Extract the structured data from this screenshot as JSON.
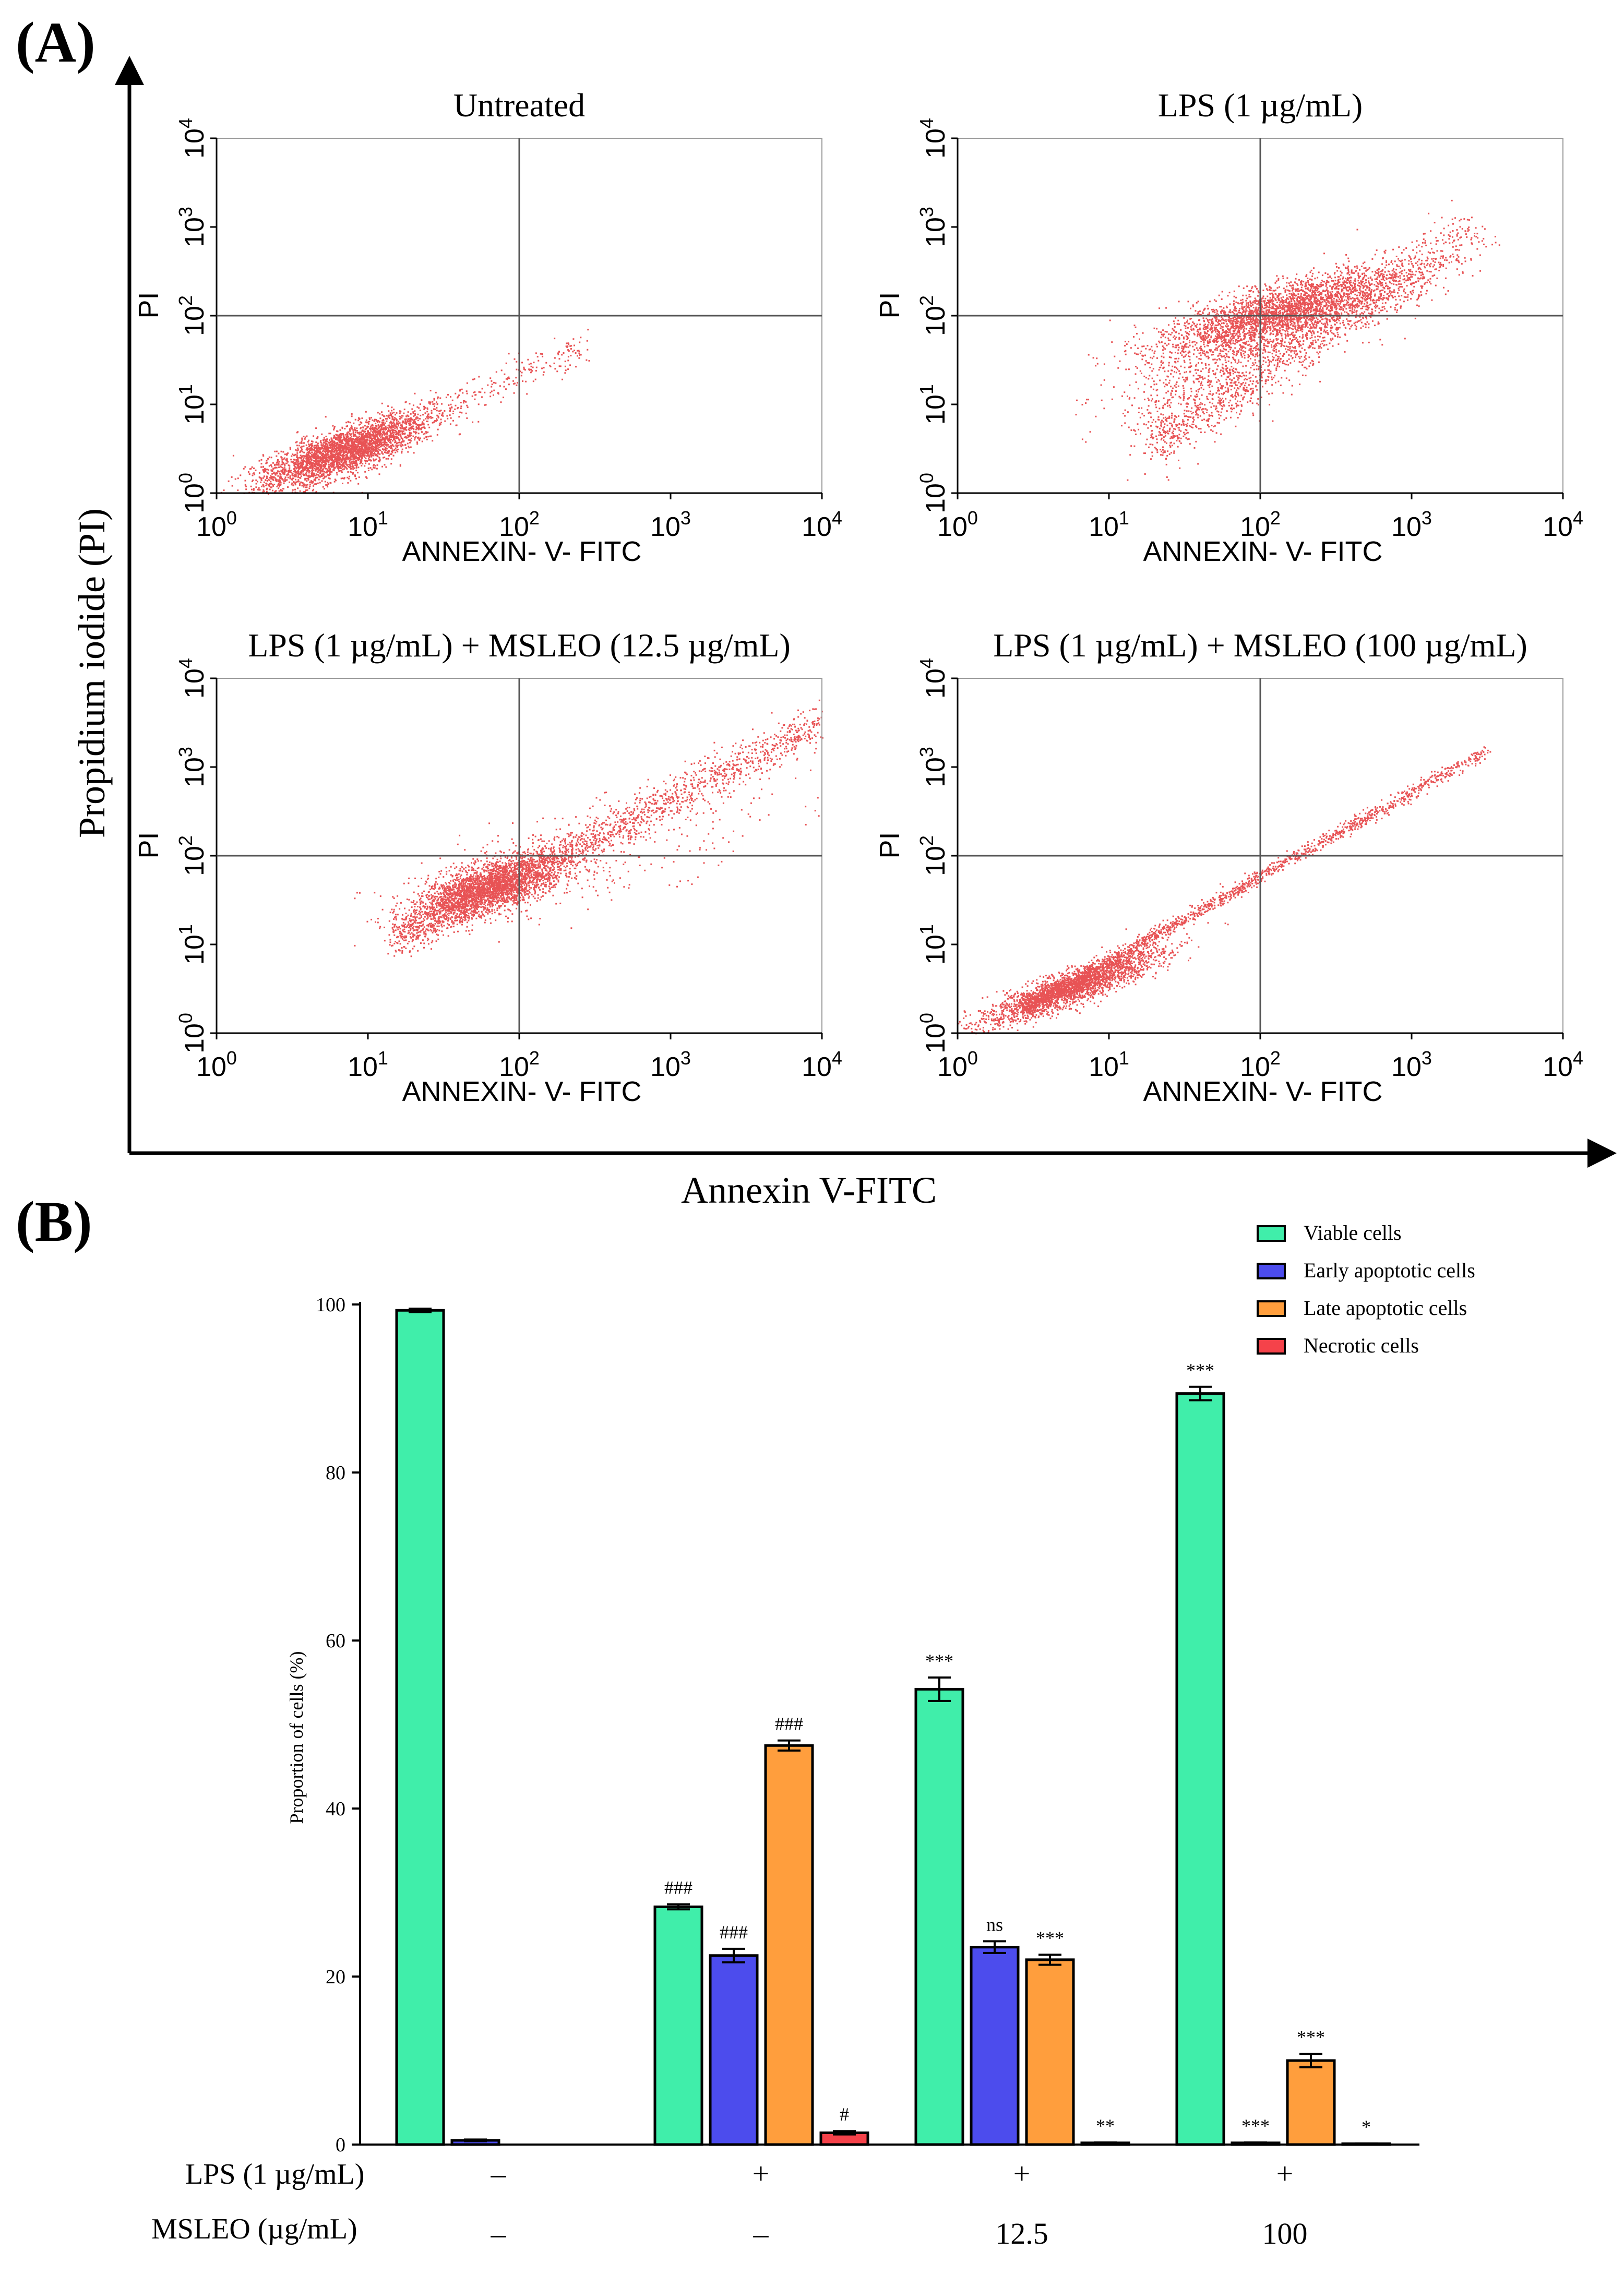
{
  "panel_labels": {
    "a": "(A)",
    "b": "(B)"
  },
  "panel_a": {
    "y_axis_title": "Propidium iodide (PI)",
    "x_axis_title": "Annexin V-FITC",
    "colors": {
      "dots": "#e0191c",
      "axis": "#000000",
      "quadrant_line": "#555555"
    },
    "chart_data": [
      {
        "type": "scatter",
        "title": "Untreated",
        "xlabel": "ANNEXIN- V- FITC",
        "ylabel": "PI",
        "xscale": "log",
        "yscale": "log",
        "xlim": [
          1,
          10000
        ],
        "ylim": [
          1,
          10000
        ],
        "tick_labels": [
          "10",
          "10",
          "10",
          "10",
          "10"
        ],
        "tick_exponents": [
          "0",
          "1",
          "2",
          "3",
          "4"
        ],
        "quadrant_gate": [
          100,
          100
        ],
        "population": "tight cluster centred near (7, 3) extending diagonally to about (300, 40)"
      },
      {
        "type": "scatter",
        "title": "LPS (1 µg/mL)",
        "xlabel": "ANNEXIN- V- FITC",
        "ylabel": "PI",
        "xscale": "log",
        "yscale": "log",
        "xlim": [
          1,
          10000
        ],
        "ylim": [
          1,
          10000
        ],
        "tick_labels": [
          "10",
          "10",
          "10",
          "10",
          "10"
        ],
        "tick_exponents": [
          "0",
          "1",
          "2",
          "3",
          "4"
        ],
        "quadrant_gate": [
          100,
          100
        ],
        "population": "dense band centred near (200, 120) from about (10, 3) to (3000, 1000)"
      },
      {
        "type": "scatter",
        "title": "LPS (1 µg/mL) + MSLEO (12.5 µg/mL)",
        "xlabel": "ANNEXIN- V- FITC",
        "ylabel": "PI",
        "xscale": "log",
        "yscale": "log",
        "xlim": [
          1,
          10000
        ],
        "ylim": [
          1,
          10000
        ],
        "tick_labels": [
          "10",
          "10",
          "10",
          "10",
          "10"
        ],
        "tick_exponents": [
          "0",
          "1",
          "2",
          "3",
          "4"
        ],
        "quadrant_gate": [
          100,
          100
        ],
        "population": "cluster centred near (70, 50) with tail rising to (10000, 3000)"
      },
      {
        "type": "scatter",
        "title": "LPS (1 µg/mL) + MSLEO (100 µg/mL)",
        "xlabel": "ANNEXIN- V- FITC",
        "ylabel": "PI",
        "xscale": "log",
        "yscale": "log",
        "xlim": [
          1,
          10000
        ],
        "ylim": [
          1,
          10000
        ],
        "tick_labels": [
          "10",
          "10",
          "10",
          "10",
          "10"
        ],
        "tick_exponents": [
          "0",
          "1",
          "2",
          "3",
          "4"
        ],
        "quadrant_gate": [
          100,
          100
        ],
        "population": "narrow diagonal streak, dense near (5, 3), thinning to (3000, 1600)"
      }
    ]
  },
  "panel_b": {
    "chart_data": {
      "type": "bar",
      "title": "",
      "ylabel": "Proportion of cells (%)",
      "ylim": [
        0,
        100
      ],
      "yticks": [
        "0",
        "20",
        "40",
        "60",
        "80",
        "100"
      ],
      "legend_position": "top-right",
      "series": [
        {
          "name": "Viable cells",
          "color": "#40eeaa",
          "values": [
            99.3,
            28.3,
            54.2,
            89.4
          ],
          "errors": [
            0.2,
            0.3,
            1.4,
            0.8
          ],
          "annotations": [
            "",
            "###",
            "***",
            "***"
          ]
        },
        {
          "name": "Early apoptotic cells",
          "color": "#4c4ced",
          "values": [
            0.5,
            22.5,
            23.5,
            0.2
          ],
          "errors": [
            0.1,
            0.8,
            0.7,
            0.05
          ],
          "annotations": [
            "",
            "###",
            "ns",
            "***"
          ]
        },
        {
          "name": "Late apoptotic cells",
          "color": "#ff9e3d",
          "values": [
            0.0,
            47.5,
            22.0,
            10.0
          ],
          "errors": [
            0.0,
            0.6,
            0.6,
            0.8
          ],
          "annotations": [
            "",
            "###",
            "***",
            "***"
          ]
        },
        {
          "name": "Necrotic cells",
          "color": "#f5424a",
          "values": [
            0.0,
            1.4,
            0.2,
            0.1
          ],
          "errors": [
            0.0,
            0.2,
            0.05,
            0.03
          ],
          "annotations": [
            "",
            "#",
            "**",
            "*"
          ]
        }
      ],
      "treatment_rows": [
        {
          "label": "LPS (1 µg/mL)",
          "values": [
            "–",
            "+",
            "+",
            "+"
          ]
        },
        {
          "label": "MSLEO (µg/mL)",
          "values": [
            "–",
            "–",
            "12.5",
            "100"
          ]
        }
      ]
    }
  }
}
